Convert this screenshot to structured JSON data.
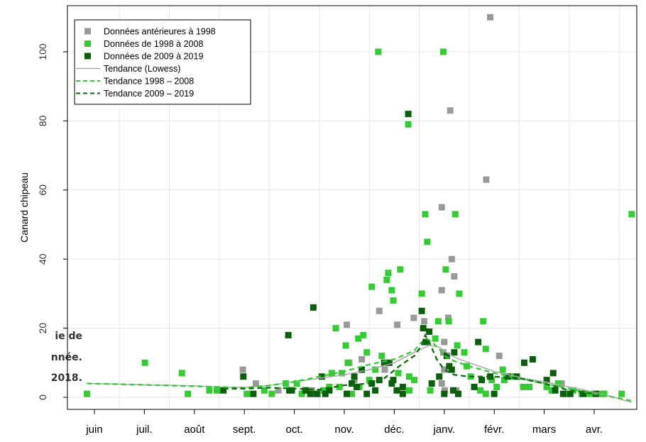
{
  "caption_fragments": [
    "ie de",
    "nnée.",
    "2018."
  ],
  "colors": {
    "before_1998": "#999999",
    "d1998_2008": "#33cc33",
    "d2009_2019": "#0a5f0a",
    "lowess": "#aaaaaa",
    "trend_1998_2008": "#33cc33",
    "trend_2009_2019": "#0a6e0a",
    "grid": "#e6e6e6"
  },
  "chart_data": {
    "type": "scatter",
    "title": "",
    "xlabel": "",
    "ylabel": "Canard chipeau",
    "categories": [
      "juin",
      "juil.",
      "août",
      "sept.",
      "oct.",
      "nov.",
      "déc.",
      "janv.",
      "févr.",
      "mars",
      "avr."
    ],
    "yticks": [
      0,
      20,
      40,
      60,
      80,
      100
    ],
    "xlim": [
      -0.05,
      10.7
    ],
    "ylim": [
      -3,
      114
    ],
    "grid": true,
    "legend_position": "top-left",
    "legend": [
      {
        "label": "Données antérieures à 1998",
        "kind": "point",
        "series": "before_1998"
      },
      {
        "label": "Données de 1998 à 2008",
        "kind": "point",
        "series": "d1998_2008"
      },
      {
        "label": "Données de 2009 à 2019",
        "kind": "point",
        "series": "d2009_2019"
      },
      {
        "label": "Tendance (Lowess)",
        "kind": "line",
        "series": "lowess"
      },
      {
        "label": "Tendance 1998 – 2008",
        "kind": "dash",
        "series": "trend_1998_2008"
      },
      {
        "label": "Tendance 2009 – 2019",
        "kind": "dash",
        "series": "trend_2009_2019"
      }
    ],
    "series": [
      {
        "name": "Données antérieures à 1998",
        "key": "before_1998",
        "points": [
          [
            2.97,
            8
          ],
          [
            3.23,
            4
          ],
          [
            3.68,
            2
          ],
          [
            4.47,
            1
          ],
          [
            4.35,
            2
          ],
          [
            5.05,
            21
          ],
          [
            5.1,
            10
          ],
          [
            5.35,
            11
          ],
          [
            5.7,
            25
          ],
          [
            5.81,
            8
          ],
          [
            6.06,
            21
          ],
          [
            6.39,
            23
          ],
          [
            6.6,
            22
          ],
          [
            6.95,
            55
          ],
          [
            6.95,
            31
          ],
          [
            6.98,
            13
          ],
          [
            7.0,
            16
          ],
          [
            7.0,
            8
          ],
          [
            7.08,
            23
          ],
          [
            7.15,
            40
          ],
          [
            7.12,
            83
          ],
          [
            7.2,
            35
          ],
          [
            7.24,
            2
          ],
          [
            7.01,
            2
          ],
          [
            7.84,
            63
          ],
          [
            7.92,
            110
          ],
          [
            8.1,
            12
          ],
          [
            9.35,
            4
          ],
          [
            6.95,
            4
          ],
          [
            5.2,
            5
          ]
        ]
      },
      {
        "name": "Données de 1998 à 2008",
        "key": "d1998_2008",
        "points": [
          [
            -0.15,
            1
          ],
          [
            1.01,
            10
          ],
          [
            1.75,
            7
          ],
          [
            1.87,
            1
          ],
          [
            2.3,
            2
          ],
          [
            2.45,
            2
          ],
          [
            3.05,
            1
          ],
          [
            3.4,
            2
          ],
          [
            3.83,
            4
          ],
          [
            4.05,
            4
          ],
          [
            4.25,
            2
          ],
          [
            4.58,
            2
          ],
          [
            4.75,
            7
          ],
          [
            4.83,
            20
          ],
          [
            4.9,
            3
          ],
          [
            5.03,
            15
          ],
          [
            5.07,
            10
          ],
          [
            5.15,
            1
          ],
          [
            5.28,
            17
          ],
          [
            5.38,
            18
          ],
          [
            5.45,
            13
          ],
          [
            5.55,
            32
          ],
          [
            5.62,
            8
          ],
          [
            5.68,
            100
          ],
          [
            5.75,
            12
          ],
          [
            5.88,
            36
          ],
          [
            5.85,
            34
          ],
          [
            5.95,
            31
          ],
          [
            5.98,
            28
          ],
          [
            6.12,
            37
          ],
          [
            6.28,
            79
          ],
          [
            6.3,
            6
          ],
          [
            6.3,
            2
          ],
          [
            6.55,
            30
          ],
          [
            6.62,
            53
          ],
          [
            6.66,
            45
          ],
          [
            6.82,
            17
          ],
          [
            6.88,
            22
          ],
          [
            6.98,
            100
          ],
          [
            7.03,
            37
          ],
          [
            7.09,
            22
          ],
          [
            7.22,
            53
          ],
          [
            7.26,
            15
          ],
          [
            7.3,
            30
          ],
          [
            7.4,
            13
          ],
          [
            7.53,
            6
          ],
          [
            7.72,
            2
          ],
          [
            7.78,
            22
          ],
          [
            7.83,
            14
          ],
          [
            7.83,
            1
          ],
          [
            7.95,
            5
          ],
          [
            8.17,
            8
          ],
          [
            8.2,
            5
          ],
          [
            8.38,
            6
          ],
          [
            8.58,
            3
          ],
          [
            8.7,
            3
          ],
          [
            9.05,
            3
          ],
          [
            9.15,
            2
          ],
          [
            9.28,
            4
          ],
          [
            9.43,
            1
          ],
          [
            9.58,
            2
          ],
          [
            9.75,
            1
          ],
          [
            9.9,
            1
          ],
          [
            10.15,
            1
          ],
          [
            10.2,
            1
          ],
          [
            10.55,
            1
          ],
          [
            10.75,
            53
          ],
          [
            4.95,
            7
          ],
          [
            5.5,
            5
          ],
          [
            6.08,
            7
          ],
          [
            6.4,
            5
          ],
          [
            5.3,
            3
          ],
          [
            4.7,
            3
          ],
          [
            6.72,
            2
          ],
          [
            7.45,
            9
          ],
          [
            8.05,
            3
          ],
          [
            4.15,
            1
          ],
          [
            3.55,
            1
          ]
        ]
      },
      {
        "name": "Données de 2009 à 2019",
        "key": "d2009_2019",
        "points": [
          [
            2.58,
            2
          ],
          [
            2.98,
            6
          ],
          [
            3.18,
            1
          ],
          [
            3.88,
            18
          ],
          [
            3.95,
            2
          ],
          [
            4.22,
            2
          ],
          [
            4.32,
            1
          ],
          [
            4.38,
            26
          ],
          [
            4.45,
            1
          ],
          [
            4.55,
            6
          ],
          [
            4.62,
            1
          ],
          [
            4.7,
            2
          ],
          [
            5.05,
            1
          ],
          [
            5.15,
            4
          ],
          [
            5.2,
            6
          ],
          [
            5.25,
            3
          ],
          [
            5.35,
            8
          ],
          [
            5.45,
            1
          ],
          [
            5.55,
            4
          ],
          [
            5.62,
            2
          ],
          [
            5.8,
            10
          ],
          [
            5.9,
            10
          ],
          [
            5.95,
            4
          ],
          [
            5.98,
            5
          ],
          [
            6.05,
            2
          ],
          [
            6.17,
            1
          ],
          [
            6.17,
            3
          ],
          [
            6.28,
            82
          ],
          [
            6.55,
            25
          ],
          [
            6.58,
            20
          ],
          [
            6.63,
            16
          ],
          [
            6.75,
            4
          ],
          [
            6.9,
            6
          ],
          [
            7.0,
            1
          ],
          [
            7.1,
            9
          ],
          [
            7.15,
            8
          ],
          [
            7.18,
            2
          ],
          [
            7.2,
            13
          ],
          [
            7.28,
            1
          ],
          [
            7.6,
            3
          ],
          [
            7.68,
            16
          ],
          [
            7.75,
            5
          ],
          [
            7.92,
            6
          ],
          [
            8.0,
            1
          ],
          [
            8.27,
            6
          ],
          [
            8.6,
            10
          ],
          [
            8.77,
            11
          ],
          [
            9.05,
            5
          ],
          [
            9.18,
            7
          ],
          [
            9.22,
            2
          ],
          [
            9.38,
            1
          ],
          [
            9.52,
            1
          ],
          [
            9.78,
            1
          ],
          [
            10.03,
            1
          ],
          [
            3.9,
            2
          ],
          [
            5.7,
            5
          ],
          [
            6.7,
            19
          ],
          [
            7.05,
            12
          ],
          [
            8.45,
            6
          ]
        ]
      }
    ],
    "trends": [
      {
        "name": "Tendance (Lowess)",
        "key": "lowess",
        "style": "solid",
        "points": [
          [
            -0.15,
            4
          ],
          [
            0.5,
            3.8
          ],
          [
            1,
            3.6
          ],
          [
            1.5,
            3.5
          ],
          [
            2,
            3.3
          ],
          [
            2.5,
            3
          ],
          [
            3,
            2.8
          ],
          [
            3.5,
            3.4
          ],
          [
            4,
            4.5
          ],
          [
            4.5,
            5.5
          ],
          [
            5,
            6.5
          ],
          [
            5.5,
            8
          ],
          [
            6,
            10
          ],
          [
            6.4,
            13
          ],
          [
            6.7,
            15
          ],
          [
            6.9,
            14.5
          ],
          [
            7.1,
            12.5
          ],
          [
            7.3,
            11
          ],
          [
            7.6,
            9.5
          ],
          [
            8,
            7.5
          ],
          [
            8.3,
            6.5
          ],
          [
            8.6,
            5.5
          ],
          [
            9,
            4.5
          ],
          [
            9.5,
            3
          ],
          [
            10,
            1.5
          ],
          [
            10.4,
            0
          ],
          [
            10.75,
            -1.5
          ]
        ]
      },
      {
        "name": "Tendance 1998 – 2008",
        "key": "trend_1998_2008",
        "style": "dashed",
        "points": [
          [
            -0.15,
            4
          ],
          [
            0.5,
            3.8
          ],
          [
            1,
            3.6
          ],
          [
            1.5,
            3.4
          ],
          [
            2,
            3.2
          ],
          [
            2.5,
            3
          ],
          [
            3,
            2.8
          ],
          [
            3.5,
            3.4
          ],
          [
            4,
            4.5
          ],
          [
            4.5,
            6
          ],
          [
            5,
            7.5
          ],
          [
            5.5,
            9.5
          ],
          [
            6,
            11
          ],
          [
            6.4,
            13.5
          ],
          [
            6.55,
            16
          ],
          [
            6.65,
            17
          ],
          [
            6.75,
            16
          ],
          [
            6.9,
            14
          ],
          [
            7,
            12
          ],
          [
            7.2,
            10.5
          ],
          [
            7.5,
            9
          ],
          [
            8,
            7
          ],
          [
            8.5,
            5.5
          ],
          [
            9,
            4
          ],
          [
            9.5,
            2.5
          ],
          [
            10,
            1
          ],
          [
            10.4,
            0
          ],
          [
            10.75,
            -1
          ]
        ]
      },
      {
        "name": "Tendance 2009 – 2019",
        "key": "trend_2009_2019",
        "style": "dashed",
        "points": [
          [
            2.58,
            2.5
          ],
          [
            3,
            2.5
          ],
          [
            3.5,
            2.8
          ],
          [
            4,
            2.5
          ],
          [
            4.5,
            2.2
          ],
          [
            5,
            3.5
          ],
          [
            5.5,
            4
          ],
          [
            5.8,
            5.5
          ],
          [
            6.1,
            9
          ],
          [
            6.4,
            12
          ],
          [
            6.55,
            15
          ],
          [
            6.62,
            18
          ],
          [
            6.7,
            16
          ],
          [
            6.85,
            11
          ],
          [
            7,
            8
          ],
          [
            7.2,
            6.5
          ],
          [
            7.5,
            6
          ],
          [
            8,
            6
          ],
          [
            8.5,
            5.5
          ],
          [
            9,
            4
          ],
          [
            9.5,
            2
          ],
          [
            10,
            1
          ]
        ]
      }
    ]
  }
}
